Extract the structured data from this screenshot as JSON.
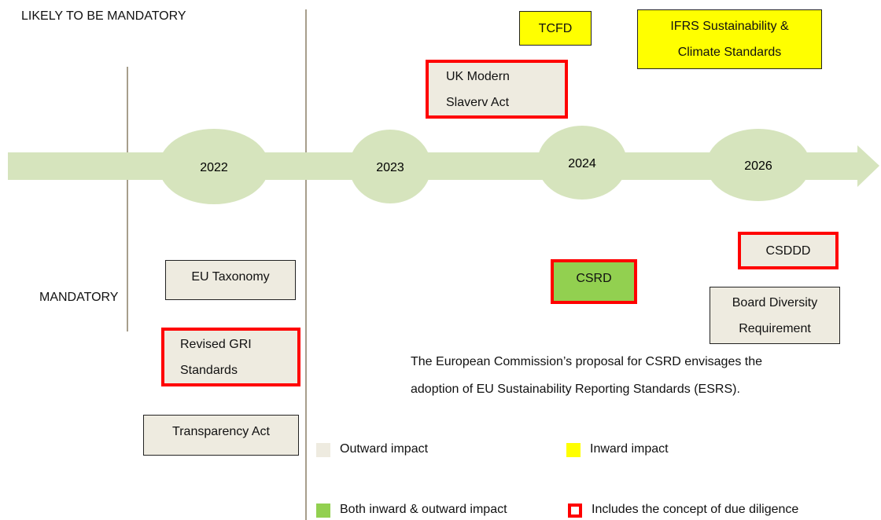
{
  "headings": {
    "likely": "LIKELY TO BE MANDATORY",
    "mandatory": "MANDATORY"
  },
  "years": [
    "2022",
    "2023",
    "2024",
    "2026"
  ],
  "boxes": {
    "tcfd": [
      "TCFD"
    ],
    "ifrs": [
      "IFRS Sustainability &",
      "Climate Standards"
    ],
    "uk_modern_slavery": [
      "UK Modern",
      "Slaverv Act"
    ],
    "eu_taxonomy": [
      "EU Taxonomy"
    ],
    "revised_gri": [
      "Revised GRI",
      "Standards"
    ],
    "transparency_act": [
      "Transparency Act"
    ],
    "csrd": [
      "CSRD"
    ],
    "csddd": [
      "CSDDD"
    ],
    "board_diversity": [
      "Board Diversity",
      "Requirement"
    ]
  },
  "note": [
    "The European Commission’s proposal for CSRD envisages the",
    "adoption of EU Sustainability Reporting Standards (ESRS)."
  ],
  "legend": {
    "outward": "Outward impact",
    "inward": "Inward impact",
    "both": "Both inward & outward impact",
    "due_diligence": "Includes the concept of due diligence"
  }
}
